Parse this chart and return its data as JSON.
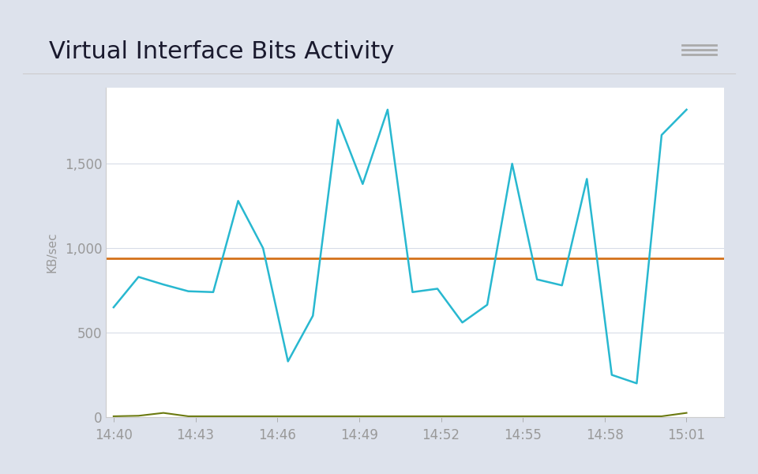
{
  "title": "Virtual Interface Bits Activity",
  "ylabel": "KB/sec",
  "background_color": "#dde2ec",
  "card_color": "#ffffff",
  "plot_bg_color": "#ffffff",
  "x_labels": [
    "14:40",
    "14:43",
    "14:46",
    "14:49",
    "14:52",
    "14:55",
    "14:58",
    "15:01"
  ],
  "cyan_line": [
    650,
    830,
    785,
    745,
    740,
    1280,
    1000,
    330,
    600,
    1760,
    1380,
    1820,
    740,
    760,
    560,
    665,
    1500,
    815,
    780,
    1410,
    250,
    200,
    1670,
    1820
  ],
  "orange_line_value": 940,
  "olive_line": [
    5,
    8,
    25,
    5,
    5,
    5,
    5,
    5,
    5,
    5,
    5,
    5,
    5,
    5,
    5,
    5,
    5,
    5,
    5,
    5,
    5,
    5,
    5,
    25
  ],
  "cyan_color": "#28b8d0",
  "orange_color": "#d4711a",
  "olive_color": "#6b7a10",
  "grid_color": "#d8dce8",
  "separator_color": "#cccccc",
  "tick_label_color": "#999999",
  "title_color": "#1a1a2e",
  "menu_color": "#aaaaaa",
  "ylim": [
    0,
    1950
  ],
  "yticks": [
    0,
    500,
    1000,
    1500
  ],
  "title_fontsize": 22,
  "tick_fontsize": 12
}
